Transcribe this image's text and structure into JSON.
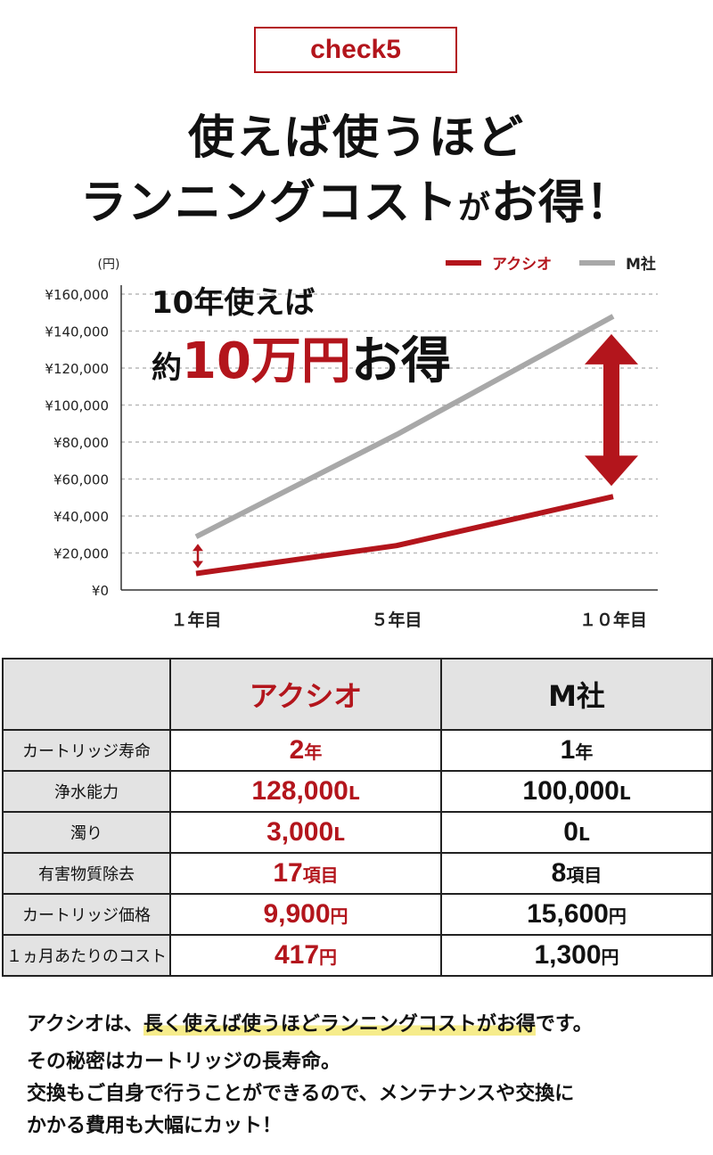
{
  "badge": "check5",
  "headline": {
    "line1": "使えば使うほど",
    "line2_a": "ランニングコスト",
    "line2_b": "が",
    "line2_c": "お得！"
  },
  "callout": {
    "line1": "10年使えば",
    "prefix": "約",
    "amount": "10万円",
    "suffix": "お得"
  },
  "colors": {
    "accent": "#b3151c",
    "competitor": "#a8a8a8"
  },
  "chart_data": {
    "type": "line",
    "y_unit_label": "(円)",
    "categories": [
      "１年目",
      "５年目",
      "１０年目"
    ],
    "series": [
      {
        "name": "アクシオ",
        "color": "#b3151c",
        "values": [
          8900,
          24000,
          50500
        ]
      },
      {
        "name": "M社",
        "color": "#a8a8a8",
        "values": [
          28800,
          84000,
          148000
        ]
      }
    ],
    "y_ticks": [
      {
        "value": 0,
        "label": "¥0"
      },
      {
        "value": 20000,
        "label": "¥20,000"
      },
      {
        "value": 40000,
        "label": "¥40,000"
      },
      {
        "value": 60000,
        "label": "¥60,000"
      },
      {
        "value": 80000,
        "label": "¥80,000"
      },
      {
        "value": 100000,
        "label": "¥100,000"
      },
      {
        "value": 120000,
        "label": "¥120,000"
      },
      {
        "value": 140000,
        "label": "¥140,000"
      },
      {
        "value": 160000,
        "label": "¥160,000"
      }
    ],
    "ylim": [
      0,
      160000
    ],
    "grid": true,
    "legend_position": "top-right"
  },
  "table": {
    "headers": {
      "axio": "アクシオ",
      "msha": "M社"
    },
    "rows": [
      {
        "label": "カートリッジ寿命",
        "axio_num": "2",
        "axio_unit": "年",
        "msha_num": "1",
        "msha_unit": "年"
      },
      {
        "label": "浄水能力",
        "axio_num": "128,000",
        "axio_unit": "L",
        "msha_num": "100,000",
        "msha_unit": "L"
      },
      {
        "label": "濁り",
        "axio_num": "3,000",
        "axio_unit": "L",
        "msha_num": "0",
        "msha_unit": "L"
      },
      {
        "label": "有害物質除去",
        "axio_num": "17",
        "axio_unit": "項目",
        "msha_num": "8",
        "msha_unit": "項目"
      },
      {
        "label": "カートリッジ価格",
        "axio_num": "9,900",
        "axio_unit": "円",
        "msha_num": "15,600",
        "msha_unit": "円"
      },
      {
        "label": "１ヵ月あたりのコスト",
        "axio_num": "417",
        "axio_unit": "円",
        "msha_num": "1,300",
        "msha_unit": "円"
      }
    ]
  },
  "description": {
    "line1_a": "アクシオは、",
    "line1_b": "長く使えば使うほどランニングコストがお得",
    "line1_c": "です。",
    "line2": "その秘密はカートリッジの長寿命。",
    "line3": "交換もご自身で行うことができるので、メンテナンスや交換に",
    "line4": "かかる費用も大幅にカット！"
  }
}
